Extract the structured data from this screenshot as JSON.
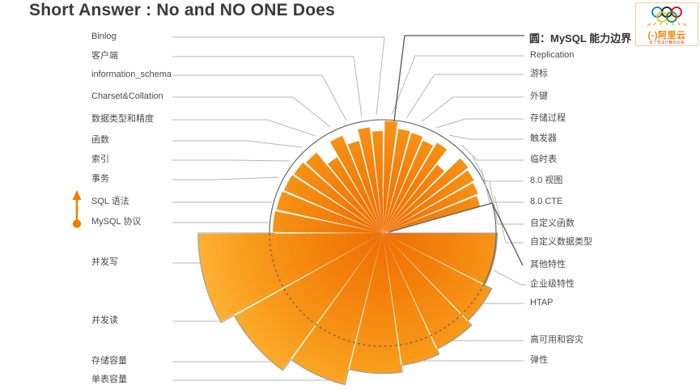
{
  "title": "Short Answer : No and NO ONE Does",
  "legend": {
    "label": "圆：MySQL 能力边界"
  },
  "logo": {
    "wordmark": "(-)阿里云",
    "tagline": "为了无法计算的价值"
  },
  "chart_data": {
    "type": "rose",
    "legend": "圆：MySQL 能力边界",
    "boundary_radius_ratio": 1.0,
    "labels_left": [
      "Binlog",
      "客户端",
      "information_schema",
      "Charset&Collation",
      "数据类型和精度",
      "函数",
      "索引",
      "事务",
      "SQL 语法",
      "MySQL 协议",
      "并发写",
      "并发读",
      "存储容量",
      "单表容量"
    ],
    "labels_right": [
      "Replication",
      "游标",
      "外键",
      "存储过程",
      "触发器",
      "临时表",
      "8.0 视图",
      "8.0 CTE",
      "自定义函数",
      "自定义数据类型",
      "其他特性",
      "企业级特性",
      "HTAP",
      "高可用和容灾",
      "弹性"
    ],
    "wedges": [
      {
        "label": "MySQL 协议",
        "start": -180,
        "end": -168,
        "value": 0.97
      },
      {
        "label": "SQL 语法",
        "start": -168,
        "end": -157,
        "value": 0.96
      },
      {
        "label": "事务",
        "start": -157,
        "end": -147,
        "value": 0.95
      },
      {
        "label": "索引",
        "start": -147,
        "end": -138,
        "value": 0.94
      },
      {
        "label": "函数",
        "start": -138,
        "end": -129,
        "value": 0.92
      },
      {
        "label": "数据类型和精度",
        "start": -129,
        "end": -120.5,
        "value": 0.78
      },
      {
        "label": "Charset&Collation",
        "start": -120.5,
        "end": -112,
        "value": 0.93
      },
      {
        "label": "information_schema",
        "start": -112,
        "end": -104,
        "value": 0.84
      },
      {
        "label": "客户端",
        "start": -104,
        "end": -96.5,
        "value": 0.94
      },
      {
        "label": "Binlog",
        "start": -96.5,
        "end": -89.5,
        "value": 0.9
      },
      {
        "label": "Replication",
        "start": -89.5,
        "end": -82,
        "value": 0.99
      },
      {
        "label": "游标",
        "start": -82,
        "end": -74.5,
        "value": 0.93
      },
      {
        "label": "外键",
        "start": -74.5,
        "end": -67,
        "value": 0.92
      },
      {
        "label": "存储过程",
        "start": -67,
        "end": -59.5,
        "value": 0.89
      },
      {
        "label": "触发器",
        "start": -59.5,
        "end": -52,
        "value": 0.93
      },
      {
        "label": "临时表",
        "start": -52,
        "end": -44.5,
        "value": 0.77
      },
      {
        "label": "8.0 视图",
        "start": -44.5,
        "end": -37,
        "value": 0.95
      },
      {
        "label": "8.0 CTE",
        "start": -37,
        "end": -29.5,
        "value": 0.93
      },
      {
        "label": "自定义函数",
        "start": -29.5,
        "end": -22,
        "value": 0.91
      },
      {
        "label": "自定义数据类型",
        "start": -22,
        "end": -15,
        "value": 0.89
      },
      {
        "label": "其他特性",
        "start": -15,
        "end": 0,
        "value": 0.05
      },
      {
        "label": "企业级特性",
        "start": 0,
        "end": 27,
        "value": 1.01
      },
      {
        "label": "HTAP",
        "start": 27,
        "end": 46,
        "value": 1.08
      },
      {
        "label": "高可用和容灾",
        "start": 46,
        "end": 65,
        "value": 1.13
      },
      {
        "label": "弹性",
        "start": 65,
        "end": 82,
        "value": 1.18
      },
      {
        "label": "单表容量",
        "start": 82,
        "end": 104,
        "value": 1.24
      },
      {
        "label": "存储容量",
        "start": 104,
        "end": 126,
        "value": 1.38
      },
      {
        "label": "并发读",
        "start": 126,
        "end": 151,
        "value": 1.5
      },
      {
        "label": "并发写",
        "start": 151,
        "end": 180,
        "value": 1.63
      }
    ]
  }
}
